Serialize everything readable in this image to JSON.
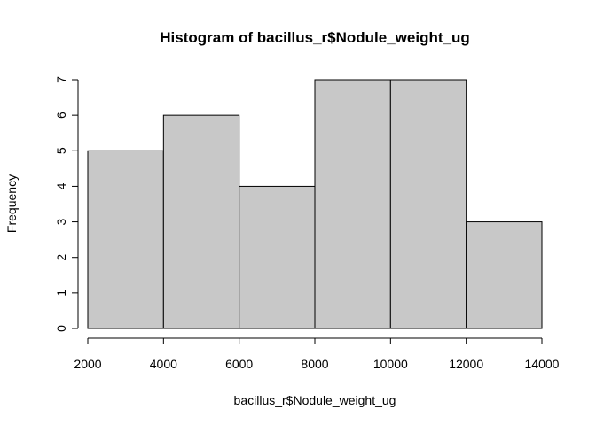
{
  "chart_data": {
    "type": "bar",
    "title": "Histogram of bacillus_r$Nodule_weight_ug",
    "xlabel": "bacillus_r$Nodule_weight_ug",
    "ylabel": "Frequency",
    "bins": [
      {
        "from": 2000,
        "to": 4000,
        "count": 5
      },
      {
        "from": 4000,
        "to": 6000,
        "count": 6
      },
      {
        "from": 6000,
        "to": 8000,
        "count": 4
      },
      {
        "from": 8000,
        "to": 10000,
        "count": 7
      },
      {
        "from": 10000,
        "to": 12000,
        "count": 7
      },
      {
        "from": 12000,
        "to": 14000,
        "count": 3
      }
    ],
    "xlim": [
      2000,
      14000
    ],
    "ylim": [
      0,
      7
    ],
    "x_ticks": [
      2000,
      4000,
      6000,
      8000,
      10000,
      12000,
      14000
    ],
    "y_ticks": [
      0,
      1,
      2,
      3,
      4,
      5,
      6,
      7
    ],
    "grid": false,
    "bar_fill": "#c8c8c8",
    "bar_stroke": "#000000"
  }
}
